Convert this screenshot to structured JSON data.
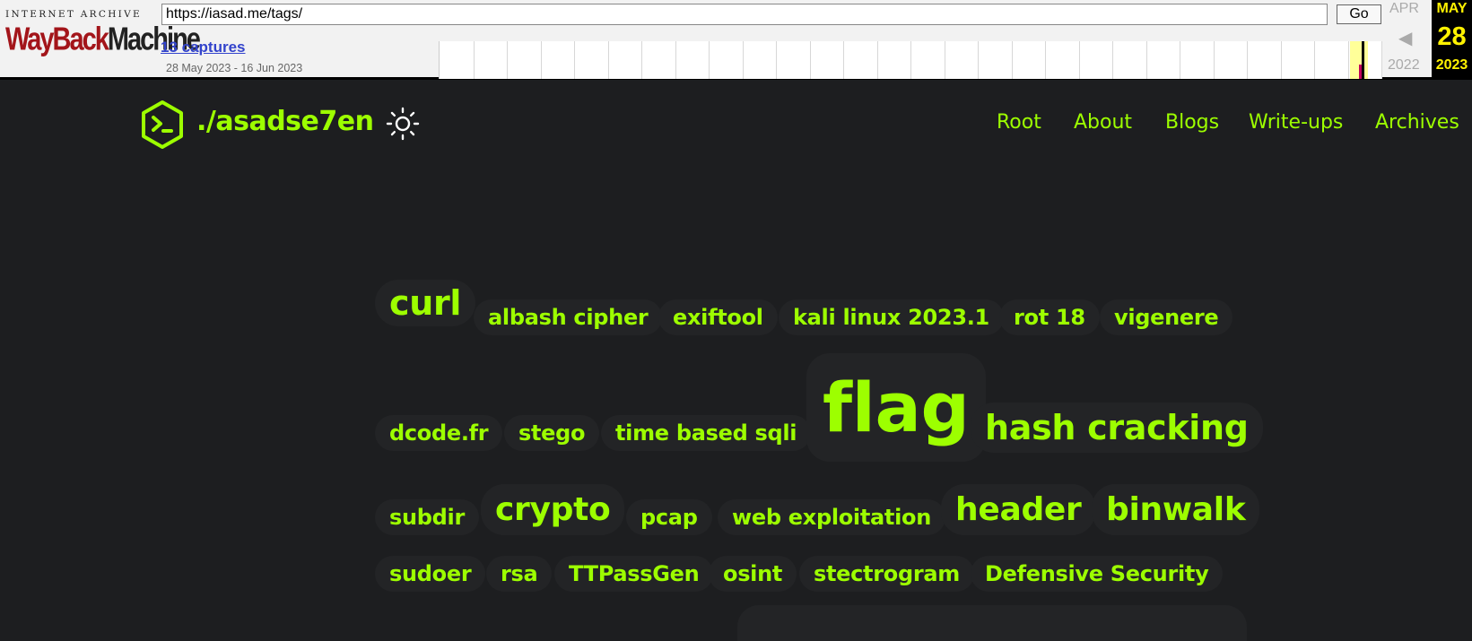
{
  "wayback": {
    "logo_top": "INTERNET ARCHIVE",
    "logo_wayback": "WayBack",
    "logo_machine": "Machine",
    "url": "https://iasad.me/tags/",
    "go_label": "Go",
    "captures": "13 captures",
    "range": "28 May 2023 - 16 Jun 2023",
    "prev_month": "APR",
    "prev_year": "2022",
    "current_month": "MAY",
    "current_day": "28",
    "current_year": "2023"
  },
  "site": {
    "title": "./asadse7en",
    "accent": "#9dff00",
    "background": "#1d1e20"
  },
  "menu": {
    "root": "Root",
    "about": "About",
    "blogs": "Blogs",
    "writeups": "Write-ups",
    "archives": "Archives"
  },
  "tags": [
    "curl",
    "albash cipher",
    "exiftool",
    "kali linux 2023.1",
    "rot 18",
    "vigenere",
    "dcode.fr",
    "stego",
    "time based sqli",
    "flag",
    "hash cracking",
    "subdir",
    "crypto",
    "pcap",
    "web exploitation",
    "header",
    "binwalk",
    "sudoer",
    "rsa",
    "TTPassGen",
    "osint",
    "stectrogram",
    "Defensive Security"
  ]
}
